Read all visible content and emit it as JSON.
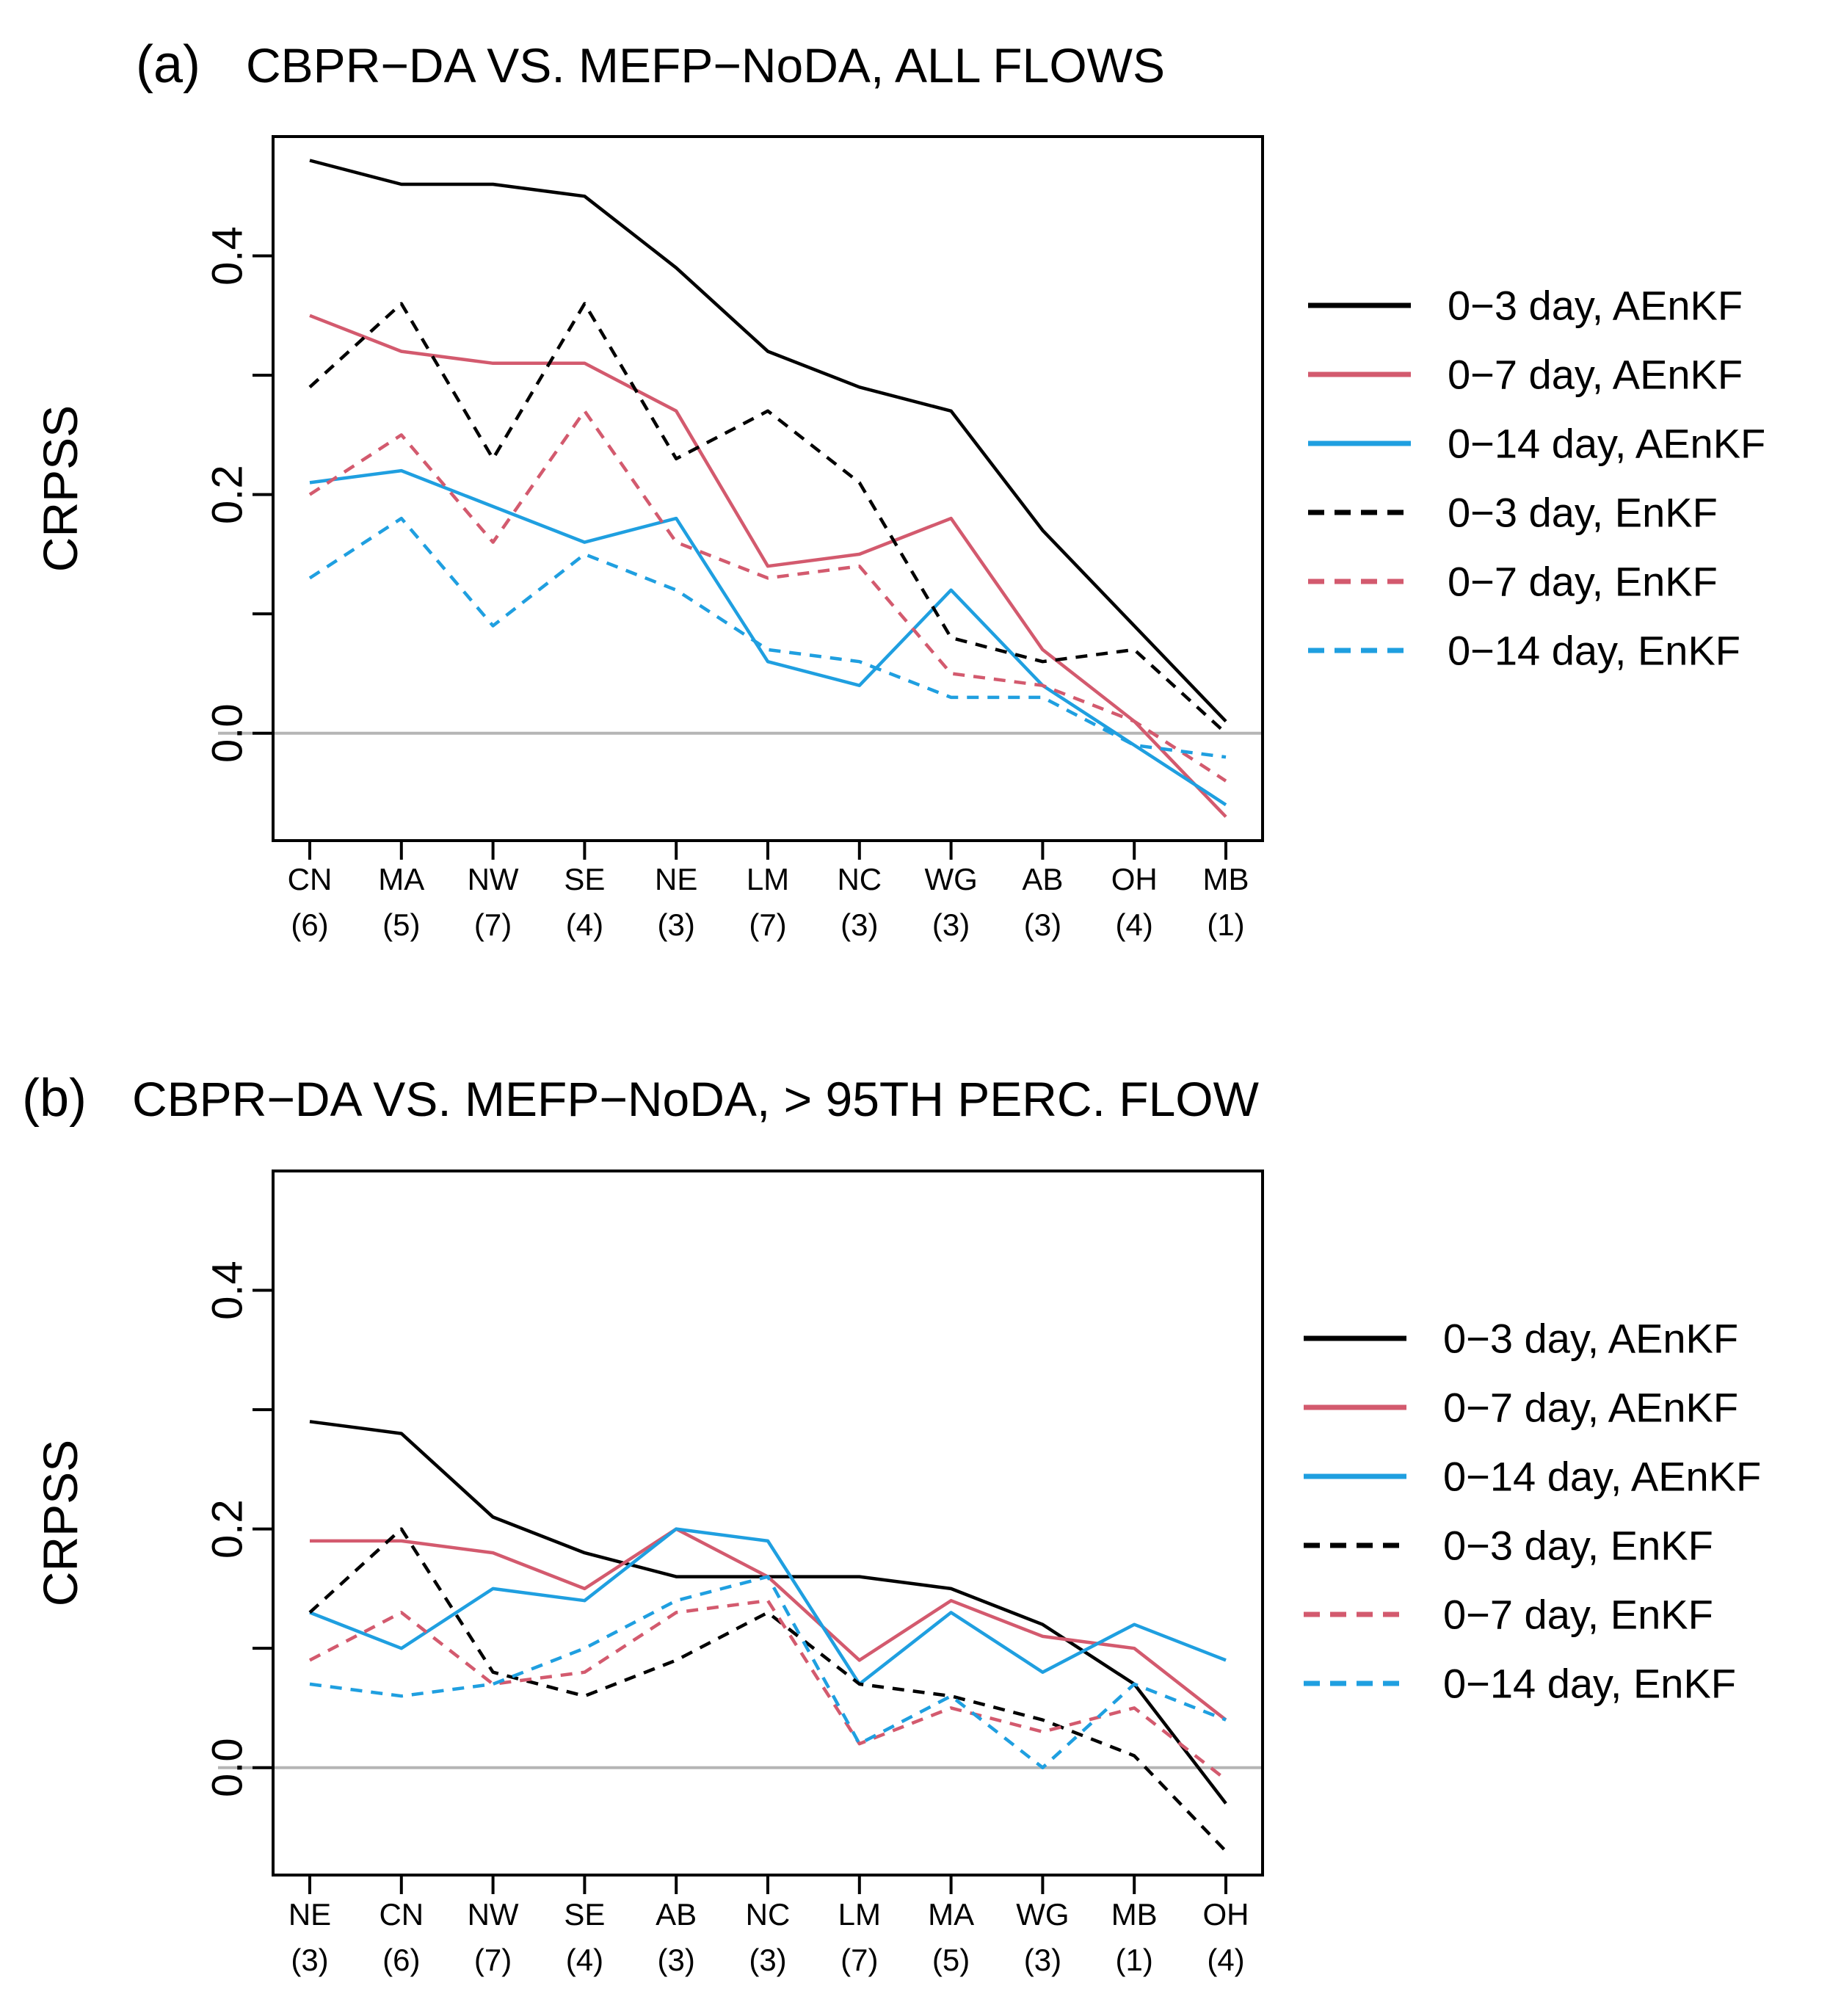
{
  "chart_data": [
    {
      "type": "line",
      "panel": "(a)",
      "title": "CBPR−DA VS. MEFP−NoDA, ALL FLOWS",
      "xlabel": "",
      "ylabel": "CRPSS",
      "ylim": [
        -0.09,
        0.5
      ],
      "yticks": [
        "0.0",
        "0.2",
        "0.4"
      ],
      "ytick_values": [
        0,
        0.2,
        0.4
      ],
      "yminor_ticks": [
        0.1,
        0.3
      ],
      "reference_line": 0,
      "grid": false,
      "legend_position": "right",
      "categories": [
        "CN",
        "MA",
        "NW",
        "SE",
        "NE",
        "LM",
        "NC",
        "WG",
        "AB",
        "OH",
        "MB"
      ],
      "category_counts": [
        "(6)",
        "(5)",
        "(7)",
        "(4)",
        "(3)",
        "(7)",
        "(3)",
        "(3)",
        "(3)",
        "(4)",
        "(1)"
      ],
      "series": [
        {
          "name": "0−3 day, AEnKF",
          "color": "#000000",
          "dash": false,
          "values": [
            0.48,
            0.46,
            0.46,
            0.45,
            0.39,
            0.32,
            0.29,
            0.27,
            0.17,
            0.09,
            0.01
          ]
        },
        {
          "name": "0−7 day, AEnKF",
          "color": "#d35a6e",
          "dash": false,
          "values": [
            0.35,
            0.32,
            0.31,
            0.31,
            0.27,
            0.14,
            0.15,
            0.18,
            0.07,
            0.01,
            -0.07
          ]
        },
        {
          "name": "0−14 day, AEnKF",
          "color": "#1f9fe0",
          "dash": false,
          "values": [
            0.21,
            0.22,
            0.19,
            0.16,
            0.18,
            0.06,
            0.04,
            0.12,
            0.04,
            -0.01,
            -0.06
          ]
        },
        {
          "name": "0−3 day, EnKF",
          "color": "#000000",
          "dash": true,
          "values": [
            0.29,
            0.36,
            0.23,
            0.36,
            0.23,
            0.27,
            0.21,
            0.08,
            0.06,
            0.07,
            0.0
          ]
        },
        {
          "name": "0−7 day, EnKF",
          "color": "#d35a6e",
          "dash": true,
          "values": [
            0.2,
            0.25,
            0.16,
            0.27,
            0.16,
            0.13,
            0.14,
            0.05,
            0.04,
            0.01,
            -0.04
          ]
        },
        {
          "name": "0−14 day, EnKF",
          "color": "#1f9fe0",
          "dash": true,
          "values": [
            0.13,
            0.18,
            0.09,
            0.15,
            0.12,
            0.07,
            0.06,
            0.03,
            0.03,
            -0.01,
            -0.02
          ]
        }
      ]
    },
    {
      "type": "line",
      "panel": "(b)",
      "title": "CBPR−DA VS. MEFP−NoDA, > 95TH PERC. FLOW",
      "xlabel": "",
      "ylabel": "CRPSS",
      "ylim": [
        -0.09,
        0.5
      ],
      "yticks": [
        "0.0",
        "0.2",
        "0.4"
      ],
      "ytick_values": [
        0,
        0.2,
        0.4
      ],
      "yminor_ticks": [
        0.1,
        0.3
      ],
      "reference_line": 0,
      "grid": false,
      "legend_position": "right",
      "categories": [
        "NE",
        "CN",
        "NW",
        "SE",
        "AB",
        "NC",
        "LM",
        "MA",
        "WG",
        "MB",
        "OH"
      ],
      "category_counts": [
        "(3)",
        "(6)",
        "(7)",
        "(4)",
        "(3)",
        "(3)",
        "(7)",
        "(5)",
        "(3)",
        "(1)",
        "(4)"
      ],
      "series": [
        {
          "name": "0−3 day, AEnKF",
          "color": "#000000",
          "dash": false,
          "values": [
            0.29,
            0.28,
            0.21,
            0.18,
            0.16,
            0.16,
            0.16,
            0.15,
            0.12,
            0.07,
            -0.03
          ]
        },
        {
          "name": "0−7 day, AEnKF",
          "color": "#d35a6e",
          "dash": false,
          "values": [
            0.19,
            0.19,
            0.18,
            0.15,
            0.2,
            0.16,
            0.09,
            0.14,
            0.11,
            0.1,
            0.04
          ]
        },
        {
          "name": "0−14 day, AEnKF",
          "color": "#1f9fe0",
          "dash": false,
          "values": [
            0.13,
            0.1,
            0.15,
            0.14,
            0.2,
            0.19,
            0.07,
            0.13,
            0.08,
            0.12,
            0.09
          ]
        },
        {
          "name": "0−3 day, EnKF",
          "color": "#000000",
          "dash": true,
          "values": [
            0.13,
            0.2,
            0.08,
            0.06,
            0.09,
            0.13,
            0.07,
            0.06,
            0.04,
            0.01,
            -0.07
          ]
        },
        {
          "name": "0−7 day, EnKF",
          "color": "#d35a6e",
          "dash": true,
          "values": [
            0.09,
            0.13,
            0.07,
            0.08,
            0.13,
            0.14,
            0.02,
            0.05,
            0.03,
            0.05,
            -0.01
          ]
        },
        {
          "name": "0−14 day, EnKF",
          "color": "#1f9fe0",
          "dash": true,
          "values": [
            0.07,
            0.06,
            0.07,
            0.1,
            0.14,
            0.16,
            0.02,
            0.06,
            0.0,
            0.07,
            0.04
          ]
        }
      ]
    }
  ]
}
